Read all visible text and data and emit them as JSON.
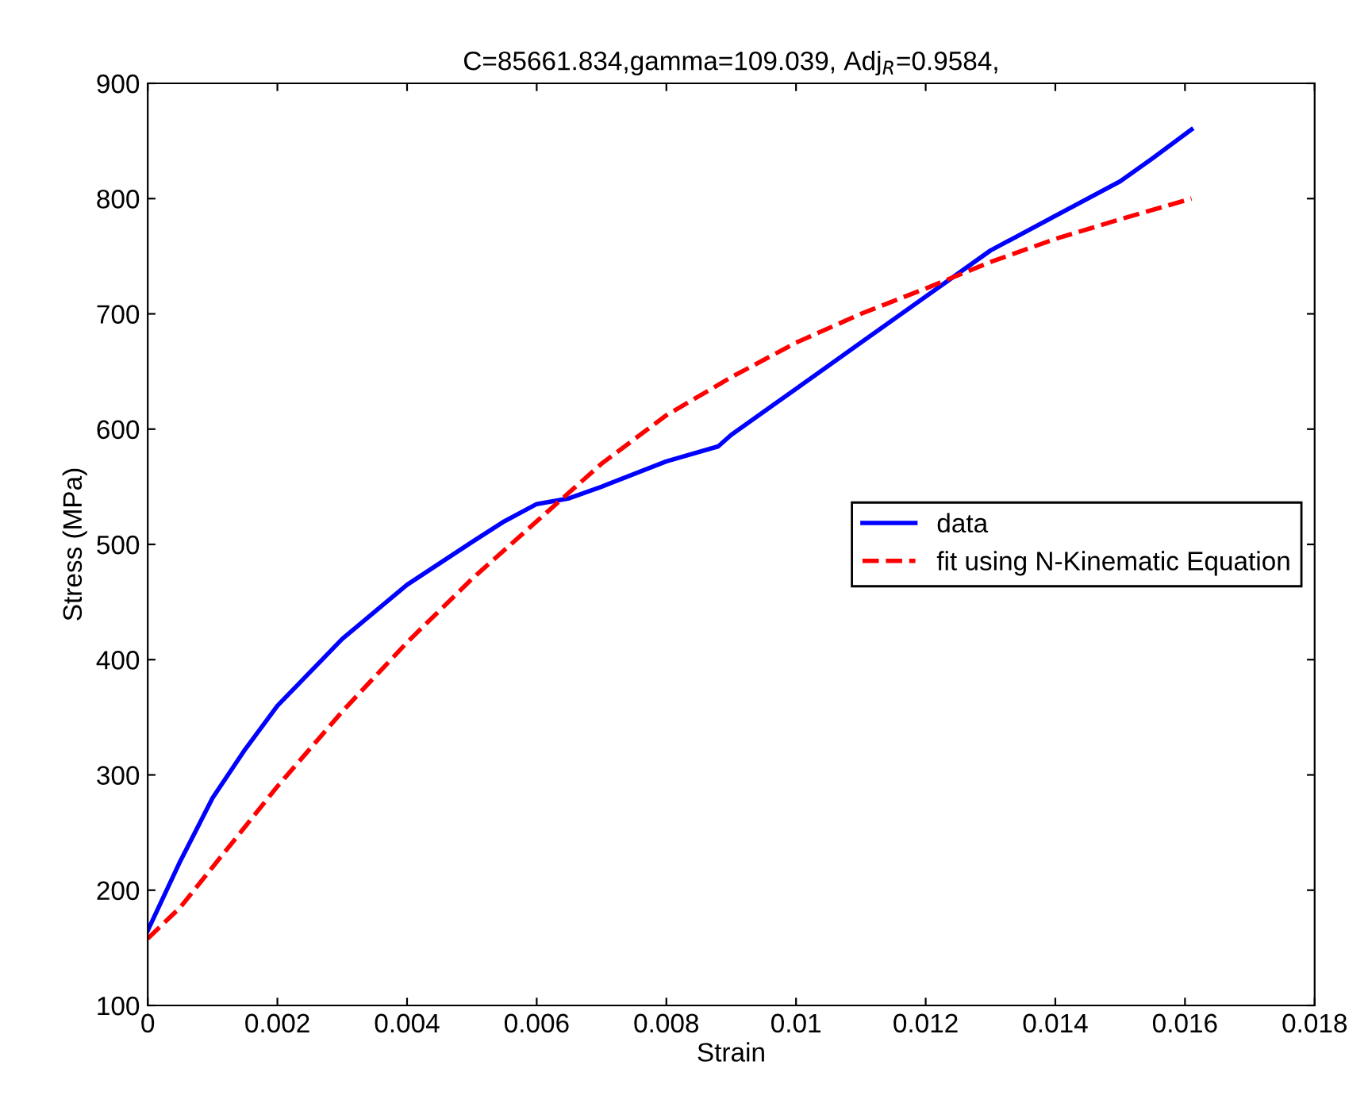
{
  "chart_data": {
    "type": "line",
    "title": "C=85661.834,gamma=109.039, Adj$_{R}$=0.9584,",
    "xlabel": "Strain",
    "ylabel": "Stress (MPa)",
    "xlim": [
      0,
      0.018
    ],
    "xticks": [
      0,
      0.002,
      0.004,
      0.006,
      0.008,
      0.01,
      0.012,
      0.014,
      0.016,
      0.018
    ],
    "ylim": [
      100,
      900
    ],
    "yticks": [
      100,
      200,
      300,
      400,
      500,
      600,
      700,
      800,
      900
    ],
    "grid": false,
    "legend": "right",
    "series": [
      {
        "name": "data",
        "color": "#0000ff",
        "line_style": "solid",
        "x": [
          0,
          0.0005,
          0.001,
          0.0015,
          0.002,
          0.003,
          0.004,
          0.005,
          0.0055,
          0.006,
          0.0065,
          0.007,
          0.008,
          0.0088,
          0.009,
          0.01,
          0.011,
          0.012,
          0.013,
          0.014,
          0.015,
          0.0155,
          0.0161
        ],
        "values": [
          165,
          225,
          280,
          322,
          360,
          418,
          465,
          502,
          520,
          535,
          540,
          550,
          572,
          585,
          595,
          635,
          675,
          715,
          755,
          785,
          815,
          835,
          860
        ]
      },
      {
        "name": "fit using N-Kinematic Equation",
        "color": "#ff0000",
        "line_style": "dashed",
        "x": [
          0,
          0.0005,
          0.001,
          0.002,
          0.003,
          0.004,
          0.005,
          0.006,
          0.007,
          0.008,
          0.009,
          0.01,
          0.011,
          0.012,
          0.013,
          0.014,
          0.015,
          0.0161
        ],
        "values": [
          158,
          185,
          220,
          290,
          355,
          415,
          470,
          520,
          570,
          612,
          645,
          675,
          700,
          722,
          745,
          765,
          782,
          800
        ]
      }
    ]
  }
}
